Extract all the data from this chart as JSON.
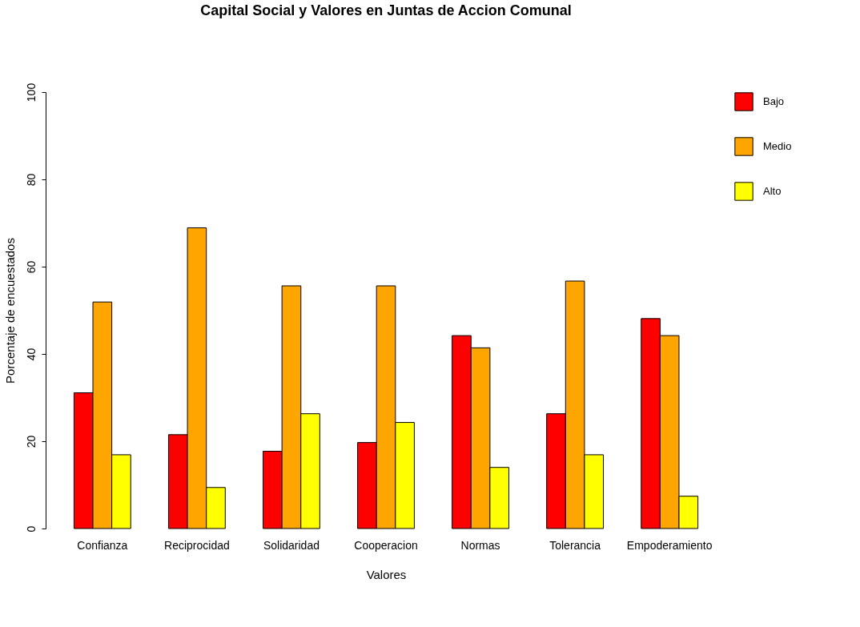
{
  "chart_data": {
    "type": "bar",
    "title": "Capital Social y Valores en Juntas de Accion Comunal",
    "xlabel": "Valores",
    "ylabel": "Porcentaje de encuestados",
    "categories": [
      "Confianza",
      "Reciprocidad",
      "Solidaridad",
      "Cooperacion",
      "Normas",
      "Tolerancia",
      "Empoderamiento"
    ],
    "series": [
      {
        "name": "Bajo",
        "color": "#ff0000",
        "values": [
          31.1,
          21.5,
          17.7,
          19.7,
          44.2,
          26.3,
          48.1
        ]
      },
      {
        "name": "Medio",
        "color": "#ffa500",
        "values": [
          51.9,
          68.9,
          55.6,
          55.6,
          41.4,
          56.7,
          44.2
        ]
      },
      {
        "name": "Alto",
        "color": "#ffff00",
        "values": [
          16.9,
          9.4,
          26.3,
          24.3,
          14.0,
          16.9,
          7.4
        ]
      }
    ],
    "ylim": [
      0,
      100
    ],
    "yticks": [
      0,
      20,
      40,
      60,
      80,
      100
    ],
    "grid": false,
    "legend": "top right"
  }
}
